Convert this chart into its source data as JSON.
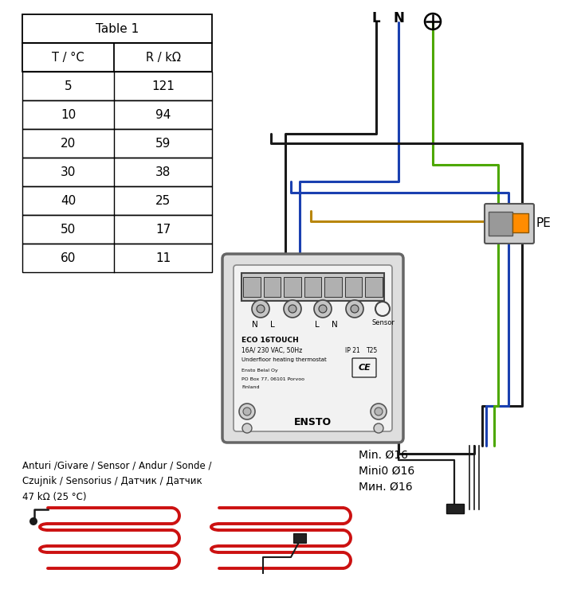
{
  "table_title": "Table 1",
  "table_col1": "T / °C",
  "table_col2": "R / kΩ",
  "table_temps": [
    "5",
    "10",
    "20",
    "30",
    "40",
    "50",
    "60"
  ],
  "table_resist": [
    "121",
    "94",
    "59",
    "38",
    "25",
    "17",
    "11"
  ],
  "label_L": "L",
  "label_N": "N",
  "label_PE": "PE",
  "sensor_label": "Anturi /Givare / Sensor / Andur / Sonde /\nCzujnik / Sensorius / Датчик / Датчик\n47 kΩ (25 °C)",
  "min_label1": "Min. Ø16",
  "min_label2": "Minі0 Ø16",
  "min_label3": "Мин. Ø16",
  "device_model": "ECO 16TOUCH",
  "device_spec1": "16A/ 230 VAC, 50Hz",
  "device_spec2": "Underfloor heating thermostat",
  "device_mfr1": "Ensto Belal Oy",
  "device_mfr2": "PO Box 77, 06101 Porvoo",
  "device_mfr3": "Finland",
  "device_brand": "ENSTO",
  "device_ip": "IP 21",
  "device_t": "T25",
  "sensor_word": "Sensor",
  "color_black": "#1a1a1a",
  "color_blue": "#1a40b0",
  "color_green": "#4da800",
  "color_brown": "#b8860b",
  "color_red": "#cc1111",
  "color_gray_light": "#e0e0e0",
  "color_gray_mid": "#aaaaaa",
  "color_gray_dark": "#555555",
  "color_orange": "#ff8c00",
  "color_white": "#ffffff",
  "bg": "#ffffff"
}
